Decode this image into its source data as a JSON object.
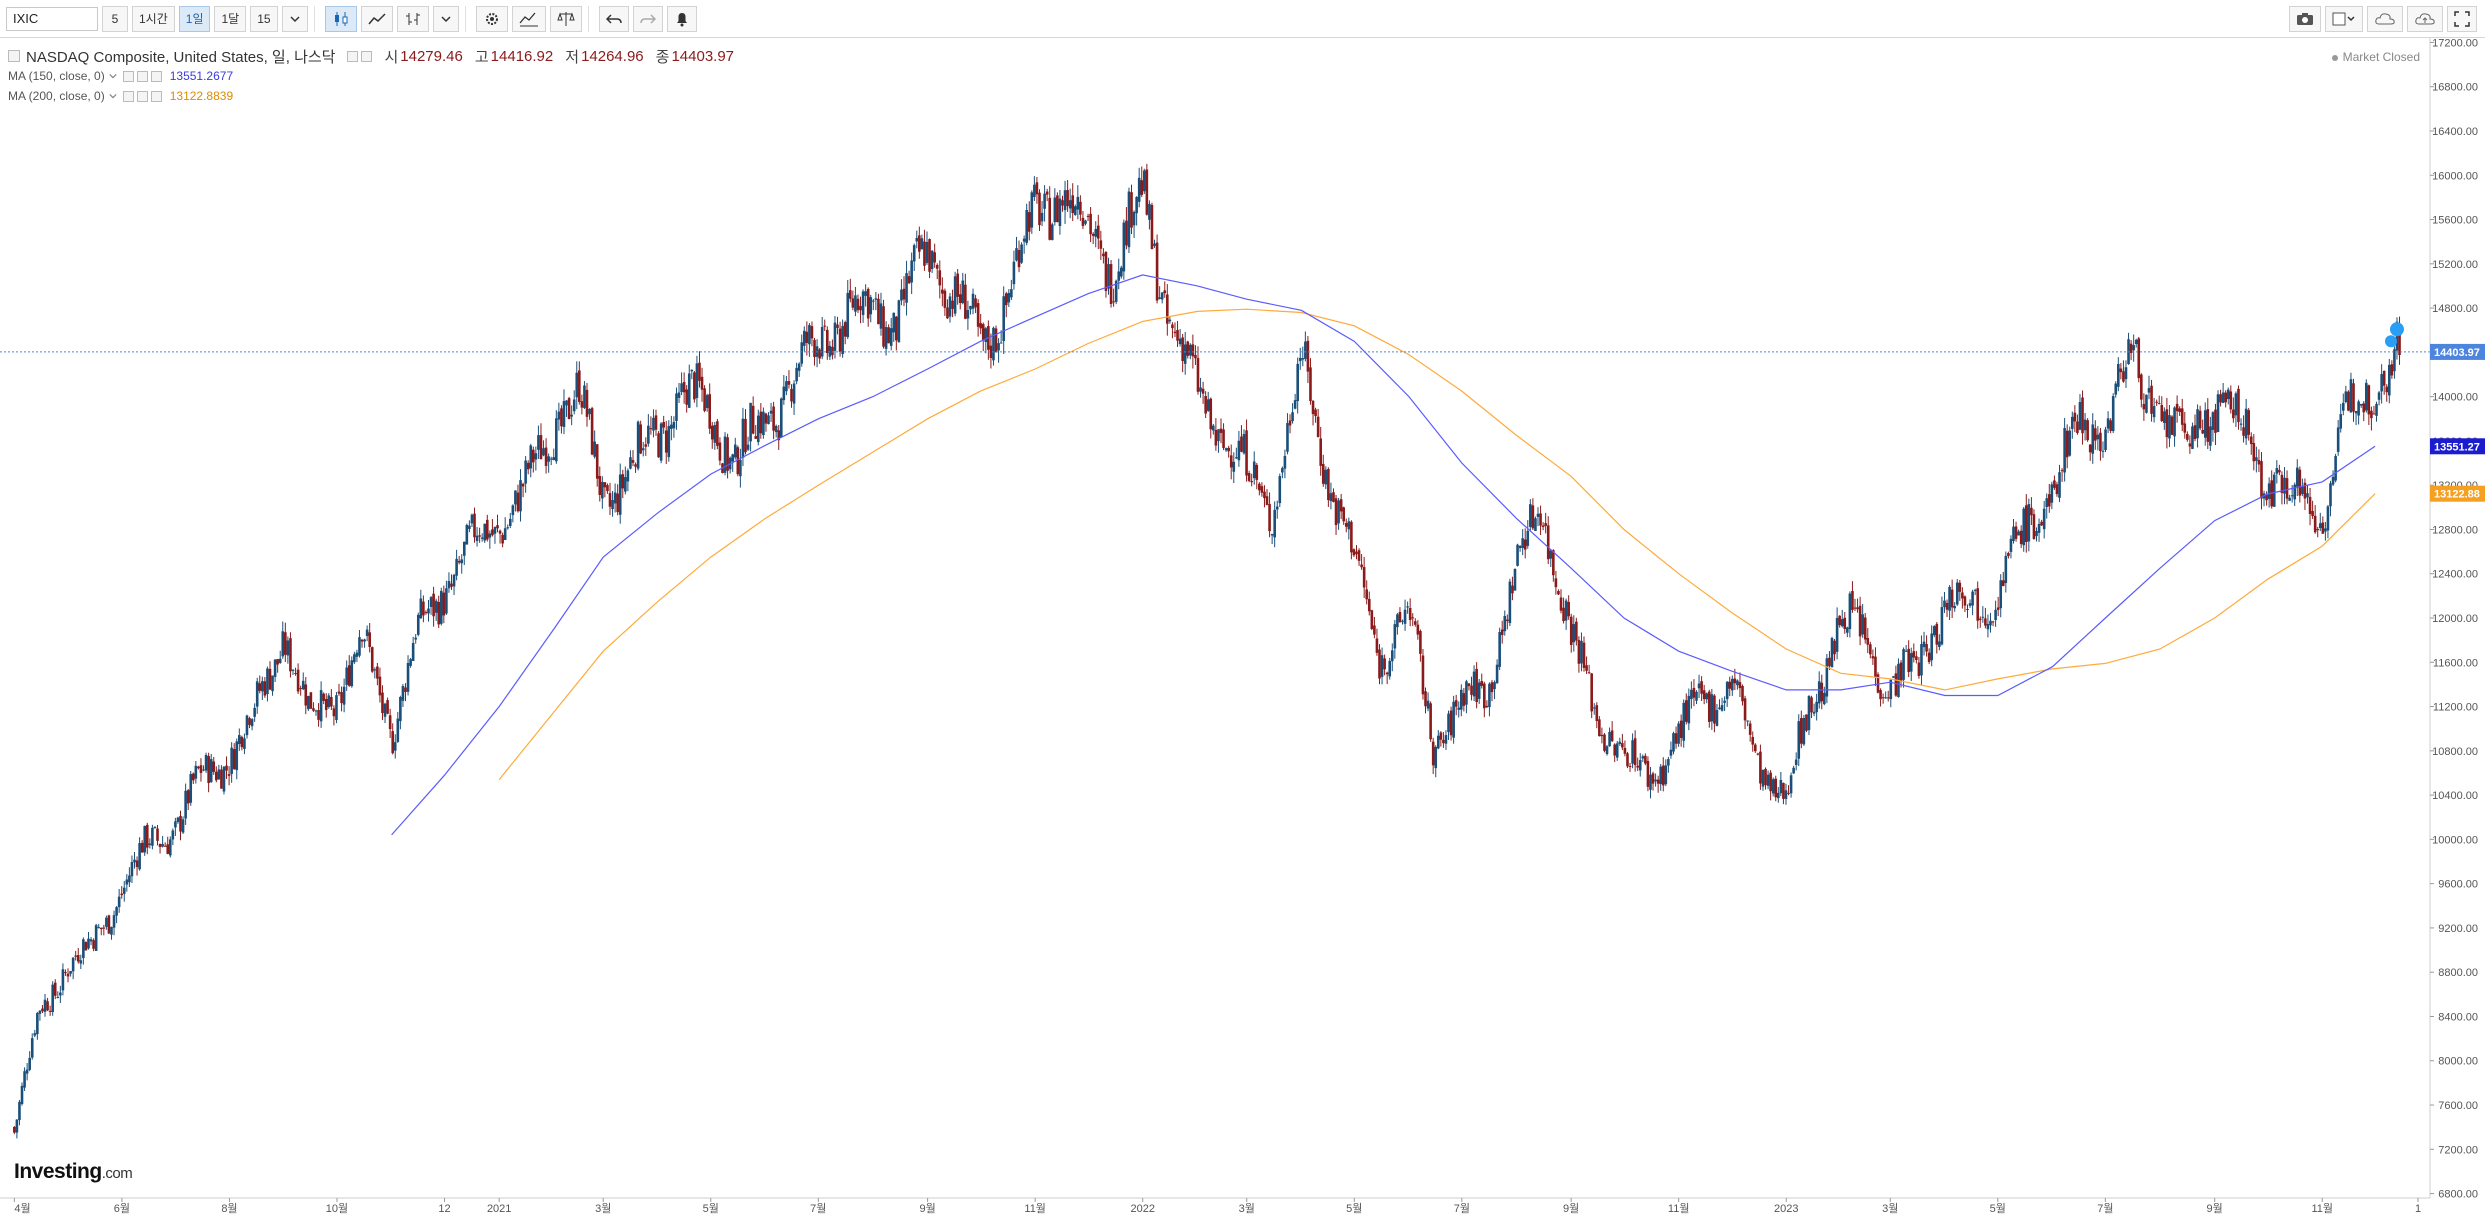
{
  "toolbar": {
    "symbol": "IXIC",
    "intervals": [
      "5",
      "1시간",
      "1일",
      "1달",
      "15"
    ],
    "active_interval": "1일"
  },
  "legend": {
    "instrument": "NASDAQ Composite, United States, 일, 나스닥",
    "open_label": "시",
    "open": "14279.46",
    "high_label": "고",
    "high": "14416.92",
    "low_label": "저",
    "low": "14264.96",
    "close_label": "종",
    "close": "14403.97",
    "ma150_label": "MA (150, close, 0)",
    "ma150_value": "13551.2677",
    "ma200_label": "MA (200, close, 0)",
    "ma200_value": "13122.8839"
  },
  "market_status": "Market Closed",
  "brand": {
    "name": "Investing",
    "domain": ".com"
  },
  "colors": {
    "up": "#1a4f7a",
    "down": "#8b1a1a",
    "ma150": "#5b5bff",
    "ma200": "#ffaa3b",
    "last_price": "#4d84de",
    "ma150_tag": "#1c1ccf",
    "ma200_tag": "#f5a020"
  },
  "chart_data": {
    "type": "candlestick",
    "y_axis_ticks": [
      "6800.00",
      "7200.00",
      "7600.00",
      "8000.00",
      "8400.00",
      "8800.00",
      "9200.00",
      "9600.00",
      "10000.00",
      "10400.00",
      "10800.00",
      "11200.00",
      "11600.00",
      "12000.00",
      "12400.00",
      "12800.00",
      "13200.00",
      "13600.00",
      "14000.00",
      "14400.00",
      "14800.00",
      "15200.00",
      "15600.00",
      "16000.00",
      "16400.00",
      "16800.00",
      "17200.00"
    ],
    "ylim": [
      6760,
      17240
    ],
    "x_axis_ticks": [
      "4월",
      "6월",
      "8월",
      "10월",
      "12",
      "2021",
      "3월",
      "5월",
      "7월",
      "9월",
      "11월",
      "2022",
      "3월",
      "5월",
      "7월",
      "9월",
      "11월",
      "2023",
      "3월",
      "5월",
      "7월",
      "9월",
      "11월",
      "1"
    ],
    "price_tags": {
      "last": "14403.97",
      "ma150": "13551.27",
      "ma200": "13122.88"
    },
    "close_series": [
      [
        "2020-04-01",
        7400
      ],
      [
        "2020-04-15",
        8400
      ],
      [
        "2020-05-01",
        8900
      ],
      [
        "2020-05-15",
        9000
      ],
      [
        "2020-06-01",
        9600
      ],
      [
        "2020-06-15",
        9900
      ],
      [
        "2020-07-01",
        10150
      ],
      [
        "2020-07-15",
        10500
      ],
      [
        "2020-08-01",
        10800
      ],
      [
        "2020-08-15",
        11100
      ],
      [
        "2020-09-01",
        11900
      ],
      [
        "2020-09-15",
        11100
      ],
      [
        "2020-10-01",
        11300
      ],
      [
        "2020-10-15",
        11800
      ],
      [
        "2020-11-01",
        11000
      ],
      [
        "2020-11-15",
        11800
      ],
      [
        "2020-12-01",
        12300
      ],
      [
        "2020-12-15",
        12600
      ],
      [
        "2021-01-01",
        12900
      ],
      [
        "2021-01-15",
        13100
      ],
      [
        "2021-02-01",
        13800
      ],
      [
        "2021-02-15",
        14000
      ],
      [
        "2021-03-01",
        13100
      ],
      [
        "2021-03-15",
        13300
      ],
      [
        "2021-04-01",
        13700
      ],
      [
        "2021-04-15",
        14000
      ],
      [
        "2021-05-01",
        13900
      ],
      [
        "2021-05-15",
        13400
      ],
      [
        "2021-06-01",
        13800
      ],
      [
        "2021-06-15",
        14100
      ],
      [
        "2021-07-01",
        14500
      ],
      [
        "2021-07-15",
        14700
      ],
      [
        "2021-08-01",
        14800
      ],
      [
        "2021-08-15",
        14700
      ],
      [
        "2021-09-01",
        15300
      ],
      [
        "2021-09-15",
        15000
      ],
      [
        "2021-10-01",
        14400
      ],
      [
        "2021-10-15",
        14900
      ],
      [
        "2021-11-01",
        15650
      ],
      [
        "2021-11-15",
        15900
      ],
      [
        "2021-12-01",
        15500
      ],
      [
        "2021-12-15",
        15200
      ],
      [
        "2022-01-01",
        15800
      ],
      [
        "2022-01-15",
        14800
      ],
      [
        "2022-02-01",
        14000
      ],
      [
        "2022-02-15",
        13700
      ],
      [
        "2022-03-01",
        13300
      ],
      [
        "2022-03-15",
        13000
      ],
      [
        "2022-04-01",
        14300
      ],
      [
        "2022-04-15",
        13400
      ],
      [
        "2022-05-01",
        12500
      ],
      [
        "2022-05-15",
        11700
      ],
      [
        "2022-06-01",
        12000
      ],
      [
        "2022-06-15",
        10900
      ],
      [
        "2022-07-01",
        11200
      ],
      [
        "2022-07-15",
        11400
      ],
      [
        "2022-08-01",
        12400
      ],
      [
        "2022-08-15",
        13100
      ],
      [
        "2022-09-01",
        11800
      ],
      [
        "2022-09-15",
        11200
      ],
      [
        "2022-10-01",
        10700
      ],
      [
        "2022-10-15",
        10600
      ],
      [
        "2022-11-01",
        10900
      ],
      [
        "2022-11-15",
        11300
      ],
      [
        "2022-12-01",
        11400
      ],
      [
        "2022-12-15",
        10700
      ],
      [
        "2023-01-01",
        10400
      ],
      [
        "2023-01-15",
        11200
      ],
      [
        "2023-02-01",
        12000
      ],
      [
        "2023-02-15",
        11800
      ],
      [
        "2023-03-01",
        11400
      ],
      [
        "2023-03-15",
        11500
      ],
      [
        "2023-04-01",
        12200
      ],
      [
        "2023-04-15",
        12100
      ],
      [
        "2023-05-01",
        12300
      ],
      [
        "2023-05-15",
        12700
      ],
      [
        "2023-06-01",
        13200
      ],
      [
        "2023-06-15",
        13700
      ],
      [
        "2023-07-01",
        13800
      ],
      [
        "2023-07-15",
        14300
      ],
      [
        "2023-08-01",
        13900
      ],
      [
        "2023-08-15",
        13500
      ],
      [
        "2023-09-01",
        14000
      ],
      [
        "2023-09-15",
        13700
      ],
      [
        "2023-10-01",
        13300
      ],
      [
        "2023-10-15",
        13100
      ],
      [
        "2023-11-01",
        13000
      ],
      [
        "2023-11-15",
        13800
      ],
      [
        "2023-12-01",
        14200
      ],
      [
        "2023-12-15",
        14400
      ]
    ],
    "ma150_series": [
      [
        "2020-11-01",
        10040
      ],
      [
        "2020-12-01",
        10580
      ],
      [
        "2021-01-01",
        11200
      ],
      [
        "2021-02-01",
        11900
      ],
      [
        "2021-03-01",
        12550
      ],
      [
        "2021-04-01",
        12950
      ],
      [
        "2021-05-01",
        13300
      ],
      [
        "2021-06-01",
        13560
      ],
      [
        "2021-07-01",
        13800
      ],
      [
        "2021-08-01",
        14000
      ],
      [
        "2021-09-01",
        14250
      ],
      [
        "2021-10-01",
        14500
      ],
      [
        "2021-11-01",
        14720
      ],
      [
        "2021-12-01",
        14930
      ],
      [
        "2022-01-01",
        15100
      ],
      [
        "2022-02-01",
        15000
      ],
      [
        "2022-03-01",
        14880
      ],
      [
        "2022-04-01",
        14780
      ],
      [
        "2022-05-01",
        14500
      ],
      [
        "2022-06-01",
        14000
      ],
      [
        "2022-07-01",
        13400
      ],
      [
        "2022-08-01",
        12900
      ],
      [
        "2022-09-01",
        12450
      ],
      [
        "2022-10-01",
        12000
      ],
      [
        "2022-11-01",
        11700
      ],
      [
        "2022-12-01",
        11520
      ],
      [
        "2023-01-01",
        11350
      ],
      [
        "2023-02-01",
        11350
      ],
      [
        "2023-03-01",
        11420
      ],
      [
        "2023-04-01",
        11300
      ],
      [
        "2023-05-01",
        11300
      ],
      [
        "2023-06-01",
        11560
      ],
      [
        "2023-07-01",
        12000
      ],
      [
        "2023-08-01",
        12450
      ],
      [
        "2023-09-01",
        12880
      ],
      [
        "2023-10-01",
        13120
      ],
      [
        "2023-11-01",
        13230
      ],
      [
        "2023-12-01",
        13551.27
      ]
    ],
    "ma200_series": [
      [
        "2021-01-01",
        10540
      ],
      [
        "2021-02-01",
        11150
      ],
      [
        "2021-03-01",
        11700
      ],
      [
        "2021-04-01",
        12150
      ],
      [
        "2021-05-01",
        12550
      ],
      [
        "2021-06-01",
        12900
      ],
      [
        "2021-07-01",
        13200
      ],
      [
        "2021-08-01",
        13500
      ],
      [
        "2021-09-01",
        13800
      ],
      [
        "2021-10-01",
        14050
      ],
      [
        "2021-11-01",
        14250
      ],
      [
        "2021-12-01",
        14480
      ],
      [
        "2022-01-01",
        14680
      ],
      [
        "2022-02-01",
        14770
      ],
      [
        "2022-03-01",
        14790
      ],
      [
        "2022-04-01",
        14760
      ],
      [
        "2022-05-01",
        14640
      ],
      [
        "2022-06-01",
        14380
      ],
      [
        "2022-07-01",
        14050
      ],
      [
        "2022-08-01",
        13650
      ],
      [
        "2022-09-01",
        13280
      ],
      [
        "2022-10-01",
        12800
      ],
      [
        "2022-11-01",
        12400
      ],
      [
        "2022-12-01",
        12050
      ],
      [
        "2023-01-01",
        11720
      ],
      [
        "2023-02-01",
        11500
      ],
      [
        "2023-03-01",
        11450
      ],
      [
        "2023-04-01",
        11350
      ],
      [
        "2023-05-01",
        11450
      ],
      [
        "2023-06-01",
        11540
      ],
      [
        "2023-07-01",
        11590
      ],
      [
        "2023-08-01",
        11720
      ],
      [
        "2023-09-01",
        12000
      ],
      [
        "2023-10-01",
        12350
      ],
      [
        "2023-11-01",
        12650
      ],
      [
        "2023-12-01",
        13122.88
      ]
    ]
  }
}
